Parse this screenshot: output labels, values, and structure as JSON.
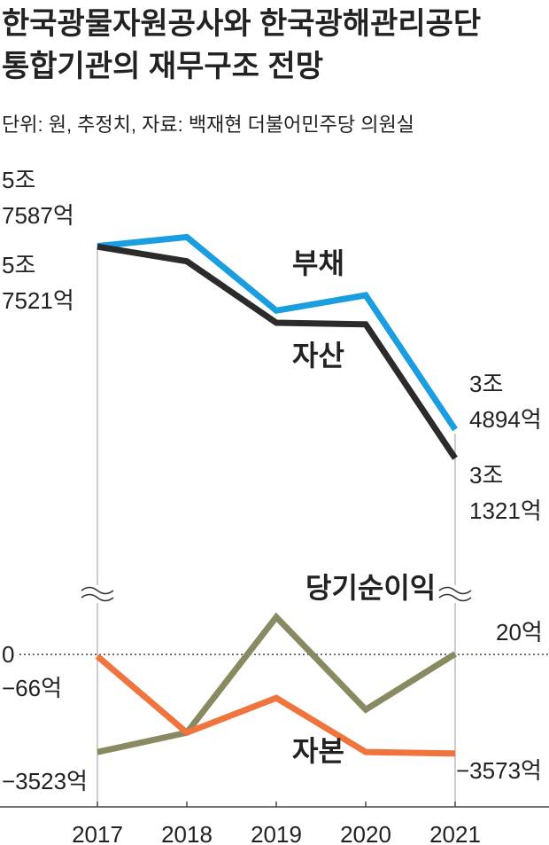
{
  "chart_data": [
    {
      "type": "line",
      "title": [
        "한국광물자원공사와 한국광해관리공단",
        "통합기관의 재무구조 전망"
      ],
      "subtitle": "단위: 원, 추정치, 자료: 백재현 더불어민주당 의원실",
      "ylim": [
        20000,
        65000
      ],
      "series": [
        {
          "name": "부채",
          "color": "#1a9ee0",
          "values": [
            57587,
            58700,
            49600,
            51500,
            34894
          ],
          "value_labels": [
            "5조\n7587억",
            null,
            null,
            null,
            "3조\n4894억"
          ]
        },
        {
          "name": "자산",
          "color": "#2b2b2b",
          "values": [
            57521,
            55700,
            48100,
            47900,
            31321
          ],
          "value_labels": [
            "5조\n7521억",
            null,
            null,
            null,
            "3조\n1321억"
          ]
        }
      ]
    },
    {
      "type": "line",
      "categories": [
        "2017",
        "2018",
        "2019",
        "2020",
        "2021"
      ],
      "ylim": [
        -5500,
        2500
      ],
      "yticks": [
        0
      ],
      "series": [
        {
          "name": "당기순이익",
          "color": "#8a8a62",
          "values": [
            -3523,
            -2820,
            1350,
            -1990,
            20
          ],
          "value_labels": [
            "−3523억",
            null,
            null,
            null,
            "20억"
          ]
        },
        {
          "name": "자본",
          "color": "#f0743e",
          "values": [
            -66,
            -2820,
            -1570,
            -3520,
            -3573
          ],
          "value_labels": [
            "−66억",
            null,
            null,
            null,
            "−3573억"
          ]
        }
      ]
    }
  ]
}
